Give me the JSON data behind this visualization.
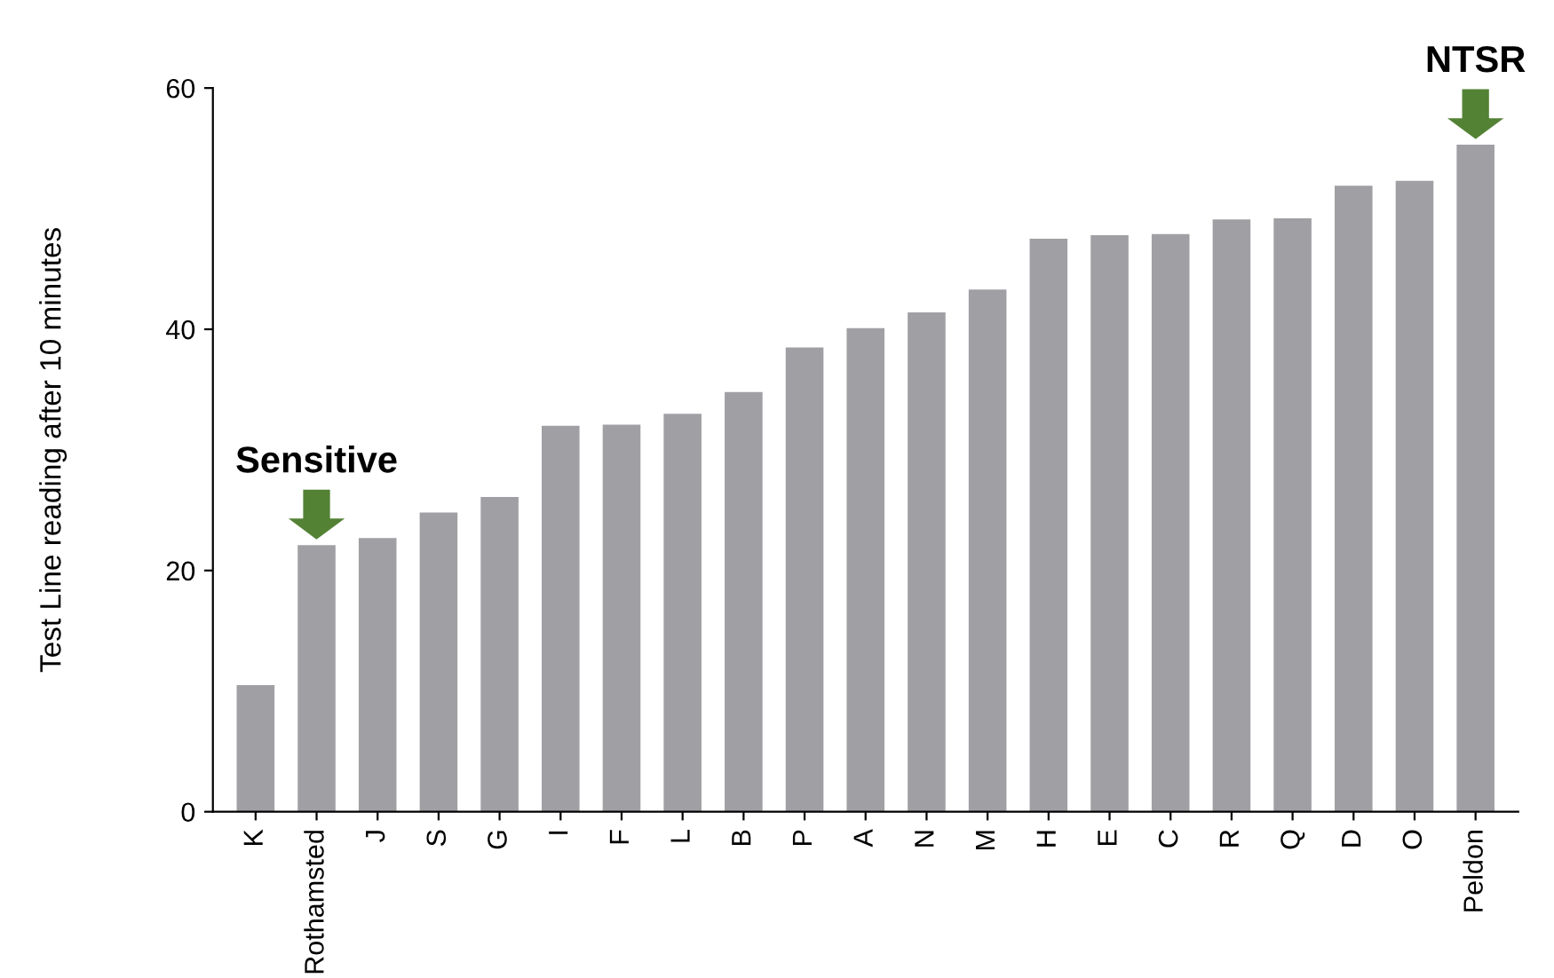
{
  "chart_data": {
    "type": "bar",
    "ylabel": "Test Line reading after 10 minutes",
    "categories": [
      "K",
      "Rothamsted",
      "J",
      "S",
      "G",
      "I",
      "F",
      "L",
      "B",
      "P",
      "A",
      "N",
      "M",
      "H",
      "E",
      "C",
      "R",
      "Q",
      "D",
      "O",
      "Peldon"
    ],
    "values": [
      10.5,
      22.1,
      22.7,
      24.8,
      26.1,
      32.0,
      32.1,
      33.0,
      34.8,
      38.5,
      40.1,
      41.4,
      43.3,
      47.5,
      47.8,
      47.9,
      49.1,
      49.2,
      51.9,
      52.3,
      55.3
    ],
    "color": "#a0a0a4",
    "ylim": [
      0,
      60
    ],
    "yticks": [
      0,
      20,
      40,
      60
    ],
    "grid": false,
    "legend": false,
    "annotations": [
      {
        "text": "Sensitive",
        "x": "Rothamsted",
        "y": 22.1
      },
      {
        "text": "NTSR",
        "x": "Peldon",
        "y": 55.3
      }
    ]
  }
}
